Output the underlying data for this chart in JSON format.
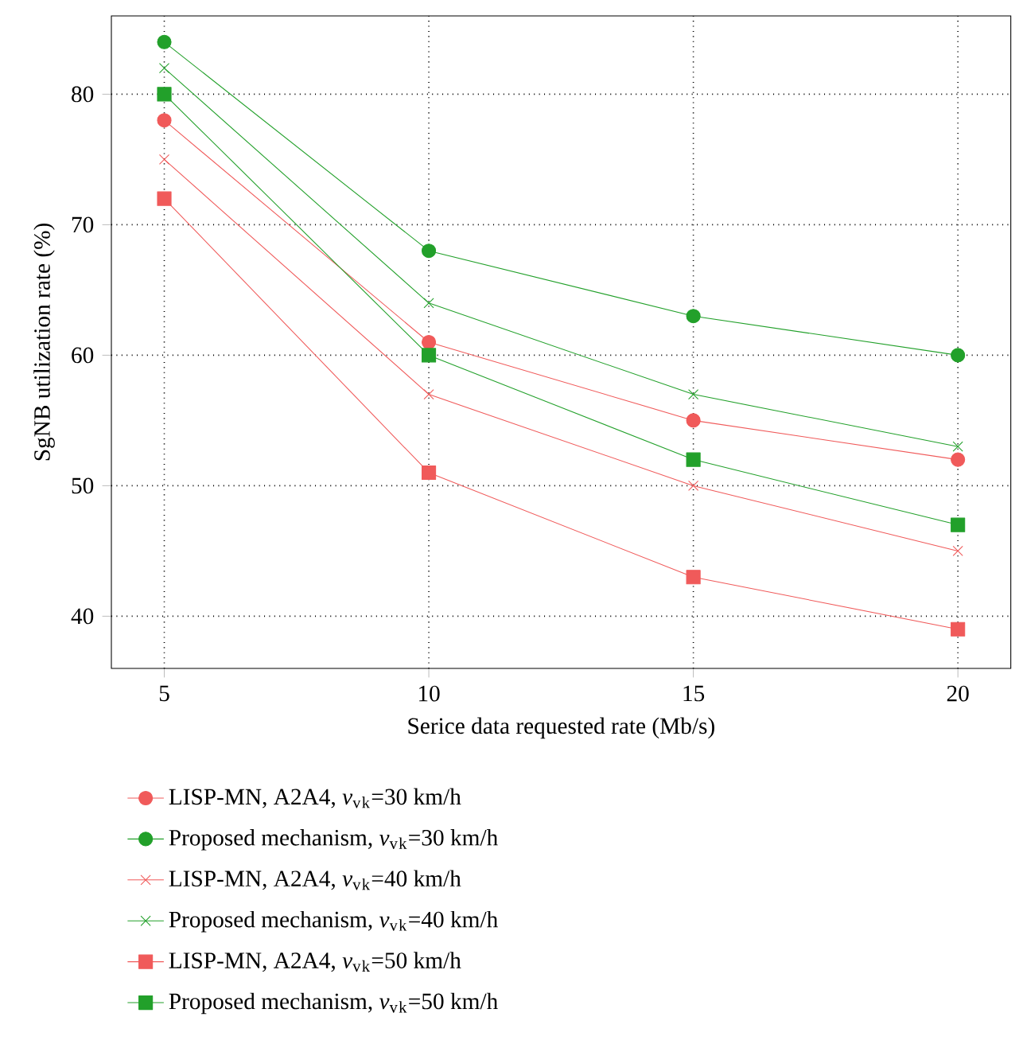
{
  "chart_data": {
    "type": "line",
    "xlabel": "Serice data requested rate (Mb/s)",
    "ylabel": "SgNB utilization rate (%)",
    "x": [
      5,
      10,
      15,
      20
    ],
    "xlim": [
      4,
      21
    ],
    "ylim": [
      36,
      86
    ],
    "xticks": [
      5,
      10,
      15,
      20
    ],
    "yticks": [
      40,
      50,
      60,
      70,
      80
    ],
    "grid": true,
    "legend": "bottom",
    "line_style": "solid",
    "series": [
      {
        "name": "LISP-MN, A2A4, *v*$_{v}$$_{k}$=30 km/h",
        "color": "#f05a5a",
        "marker": "circle",
        "values": [
          78,
          61,
          55,
          52
        ]
      },
      {
        "name": "Proposed mechanism, *v*$_{v}$$_{k}$=30 km/h",
        "color": "#22a02a",
        "marker": "circle",
        "values": [
          84,
          68,
          63,
          60
        ]
      },
      {
        "name": "LISP-MN, A2A4, *v*$_{v}$$_{k}$=40 km/h",
        "color": "#f05a5a",
        "marker": "cross",
        "values": [
          75,
          57,
          50,
          45
        ]
      },
      {
        "name": "Proposed mechanism, *v*$_{v}$$_{k}$=40 km/h",
        "color": "#22a02a",
        "marker": "cross",
        "values": [
          82,
          64,
          57,
          53
        ]
      },
      {
        "name": "LISP-MN, A2A4, *v*$_{v}$$_{k}$=50 km/h",
        "color": "#f05a5a",
        "marker": "square",
        "values": [
          72,
          51,
          43,
          39
        ]
      },
      {
        "name": "Proposed mechanism, *v*$_{v}$$_{k}$=50 km/h",
        "color": "#22a02a",
        "marker": "square",
        "values": [
          80,
          60,
          52,
          47
        ]
      }
    ]
  }
}
